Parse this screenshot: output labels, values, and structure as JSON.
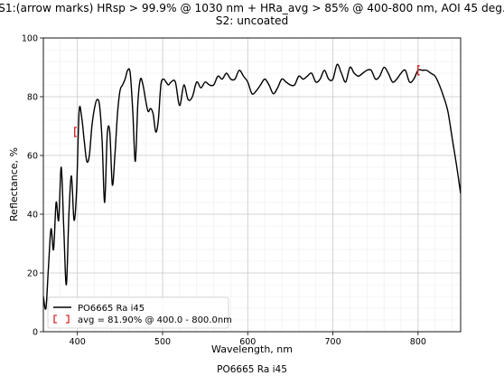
{
  "chart_data": {
    "type": "line",
    "title_line1": "S1:(arrow marks) HRsp > 99.9% @ 1030 nm + HRa_avg > 85% @ 400-800 nm, AOI 45 deg.",
    "title_line2": "S2: uncoated",
    "xlabel": "Wavelength, nm",
    "ylabel": "Reflectance, %",
    "caption": "PO6665 Ra i45",
    "xlim": [
      360,
      850
    ],
    "ylim": [
      0,
      100
    ],
    "xticks": [
      400,
      500,
      600,
      700,
      800
    ],
    "yticks": [
      0,
      20,
      40,
      60,
      80,
      100
    ],
    "grid": true,
    "legend_position": "lower-left",
    "series": [
      {
        "name": "PO6665 Ra i45",
        "color": "#000000",
        "x": [
          360,
          363,
          366,
          369,
          372,
          375,
          378,
          381,
          384,
          387,
          390,
          393,
          396,
          399,
          402,
          405,
          408,
          411,
          414,
          417,
          420,
          423,
          426,
          429,
          432,
          435,
          438,
          441,
          444,
          447,
          450,
          453,
          456,
          459,
          462,
          465,
          468,
          471,
          474,
          477,
          480,
          483,
          486,
          489,
          492,
          495,
          498,
          501,
          504,
          507,
          510,
          515,
          520,
          525,
          530,
          535,
          540,
          545,
          550,
          555,
          560,
          565,
          570,
          575,
          580,
          585,
          590,
          595,
          600,
          605,
          610,
          615,
          620,
          625,
          630,
          635,
          640,
          645,
          650,
          655,
          660,
          665,
          670,
          675,
          680,
          685,
          690,
          695,
          700,
          705,
          710,
          715,
          720,
          725,
          730,
          735,
          740,
          745,
          750,
          755,
          760,
          765,
          770,
          775,
          780,
          785,
          790,
          795,
          800,
          805,
          810,
          815,
          820,
          825,
          830,
          835,
          840,
          845,
          850
        ],
        "y": [
          12,
          8,
          22,
          35,
          28,
          44,
          38,
          56,
          35,
          16,
          40,
          53,
          38,
          48,
          75,
          73,
          65,
          58,
          60,
          70,
          76,
          79,
          77,
          65,
          44,
          67,
          68,
          50,
          60,
          74,
          82,
          84,
          86,
          89,
          88,
          75,
          58,
          78,
          86,
          84,
          79,
          75,
          76,
          74,
          68,
          72,
          84,
          86,
          85,
          84,
          85,
          85,
          77,
          84,
          79,
          80,
          85,
          83,
          85,
          84,
          84,
          87,
          86,
          88,
          86,
          86,
          89,
          87,
          85,
          81,
          82,
          84,
          86,
          84,
          81,
          83,
          86,
          85,
          84,
          84,
          87,
          86,
          87,
          88,
          85,
          86,
          89,
          86,
          86,
          91,
          88,
          85,
          90,
          88,
          87,
          88,
          89,
          89,
          86,
          87,
          90,
          88,
          85,
          86,
          88,
          89,
          85,
          86,
          89,
          89,
          89,
          88,
          87,
          84,
          80,
          75,
          66,
          57,
          47
        ]
      }
    ],
    "annotations": [
      {
        "label": "avg = 81.90% @ 400.0 - 800.0nm",
        "marker_color": "#d62728",
        "bracket_x": [
          400,
          800
        ],
        "bracket_y": 81.9
      }
    ],
    "markers": [
      {
        "x": 400,
        "y": 68,
        "color": "#d62728"
      },
      {
        "x": 803,
        "y": 89,
        "color": "#d62728"
      }
    ]
  }
}
